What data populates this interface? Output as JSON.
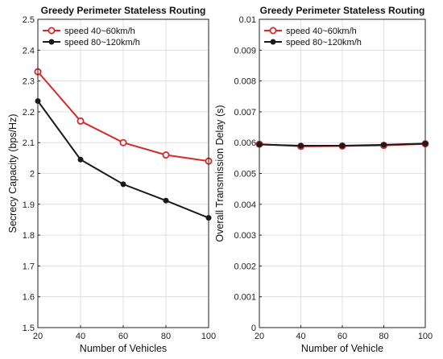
{
  "chart_data": [
    {
      "type": "line",
      "title": "Greedy Perimeter Stateless Routing",
      "xlabel": "Number of Vehicles",
      "ylabel": "Secrecy Capacity (bps/Hz)",
      "x": [
        20,
        40,
        60,
        80,
        100
      ],
      "xlim": [
        20,
        100
      ],
      "xticks": [
        "20",
        "40",
        "60",
        "80",
        "100"
      ],
      "ylim": [
        1.5,
        2.5
      ],
      "yticks": [
        "1.5",
        "1.6",
        "1.7",
        "1.8",
        "1.9",
        "2",
        "2.1",
        "2.2",
        "2.3",
        "2.4",
        "2.5"
      ],
      "grid": true,
      "legend_position": "top-left",
      "series": [
        {
          "name": "speed 40~60km/h",
          "color": "#d42a2a",
          "marker": "open-circle",
          "values": [
            2.33,
            2.17,
            2.1,
            2.06,
            2.04
          ]
        },
        {
          "name": "speed 80~120km/h",
          "color": "#1a1a1a",
          "marker": "filled-circle",
          "values": [
            2.235,
            2.045,
            1.965,
            1.912,
            1.856
          ]
        }
      ]
    },
    {
      "type": "line",
      "title": "Greedy Perimeter Stateless Routing",
      "xlabel": "Number of Vehicle",
      "ylabel": "Overall Transmission Delay (s)",
      "x": [
        20,
        40,
        60,
        80,
        100
      ],
      "xlim": [
        20,
        100
      ],
      "xticks": [
        "20",
        "40",
        "60",
        "80",
        "100"
      ],
      "ylim": [
        0,
        0.01
      ],
      "yticks": [
        "0",
        "0.001",
        "0.002",
        "0.003",
        "0.004",
        "0.005",
        "0.006",
        "0.007",
        "0.008",
        "0.009",
        "0.01"
      ],
      "grid": true,
      "legend_position": "top-left",
      "series": [
        {
          "name": "speed 40~60km/h",
          "color": "#d42a2a",
          "marker": "open-circle",
          "values": [
            0.00595,
            0.00588,
            0.00589,
            0.00591,
            0.00596
          ]
        },
        {
          "name": "speed 80~120km/h",
          "color": "#1a1a1a",
          "marker": "filled-circle",
          "values": [
            0.00594,
            0.0059,
            0.0059,
            0.00593,
            0.00597
          ]
        }
      ]
    }
  ]
}
